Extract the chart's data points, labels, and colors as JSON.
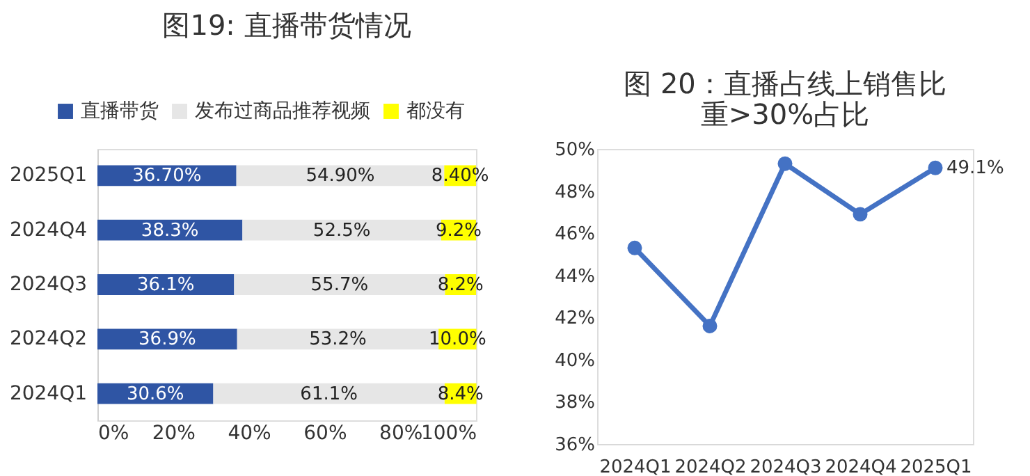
{
  "chart_data": [
    {
      "type": "bar",
      "title": "图19: 直播带货情况",
      "orientation": "horizontal",
      "stacked": true,
      "legend": "top",
      "grid": false,
      "categories": [
        "2025Q1",
        "2024Q4",
        "2024Q3",
        "2024Q2",
        "2024Q1"
      ],
      "series": [
        {
          "name": "直播带货",
          "color": "#2f55a4",
          "values": [
            36.7,
            38.3,
            36.1,
            36.9,
            30.6
          ],
          "value_labels": [
            "36.70%",
            "38.3%",
            "36.1%",
            "36.9%",
            "30.6%"
          ]
        },
        {
          "name": "发布过商品推荐视频",
          "color": "#e6e6e6",
          "values": [
            54.9,
            52.5,
            55.7,
            53.2,
            61.1
          ],
          "value_labels": [
            "54.90%",
            "52.5%",
            "55.7%",
            "53.2%",
            "61.1%"
          ]
        },
        {
          "name": "都没有",
          "color": "#ffff00",
          "values": [
            8.4,
            9.2,
            8.2,
            10.0,
            8.4
          ],
          "value_labels": [
            "8.40%",
            "9.2%",
            "8.2%",
            "10.0%",
            "8.4%"
          ]
        }
      ],
      "xlim": [
        0,
        100
      ],
      "xticks": [
        {
          "value": 0,
          "label": "0%"
        },
        {
          "value": 20,
          "label": "20%"
        },
        {
          "value": 40,
          "label": "40%"
        },
        {
          "value": 60,
          "label": "60%"
        },
        {
          "value": 80,
          "label": "80%"
        },
        {
          "value": 100,
          "label": "100%"
        }
      ]
    },
    {
      "type": "line",
      "title": "图 20：直播占线上销售比重>30%占比",
      "legend": false,
      "grid": false,
      "marker": "circle",
      "line_style": "solid",
      "categories": [
        "2024Q1",
        "2024Q2",
        "2024Q3",
        "2024Q4",
        "2025Q1"
      ],
      "series": [
        {
          "color": "#4472c4",
          "values": [
            45.3,
            41.6,
            49.3,
            46.9,
            49.1
          ],
          "value_labels": [
            null,
            null,
            null,
            null,
            "49.1%"
          ]
        }
      ],
      "ylim": [
        36,
        50
      ],
      "yticks": [
        {
          "value": 36,
          "label": "36%"
        },
        {
          "value": 38,
          "label": "38%"
        },
        {
          "value": 40,
          "label": "40%"
        },
        {
          "value": 42,
          "label": "42%"
        },
        {
          "value": 44,
          "label": "44%"
        },
        {
          "value": 46,
          "label": "46%"
        },
        {
          "value": 48,
          "label": "48%"
        },
        {
          "value": 50,
          "label": "50%"
        }
      ]
    }
  ]
}
